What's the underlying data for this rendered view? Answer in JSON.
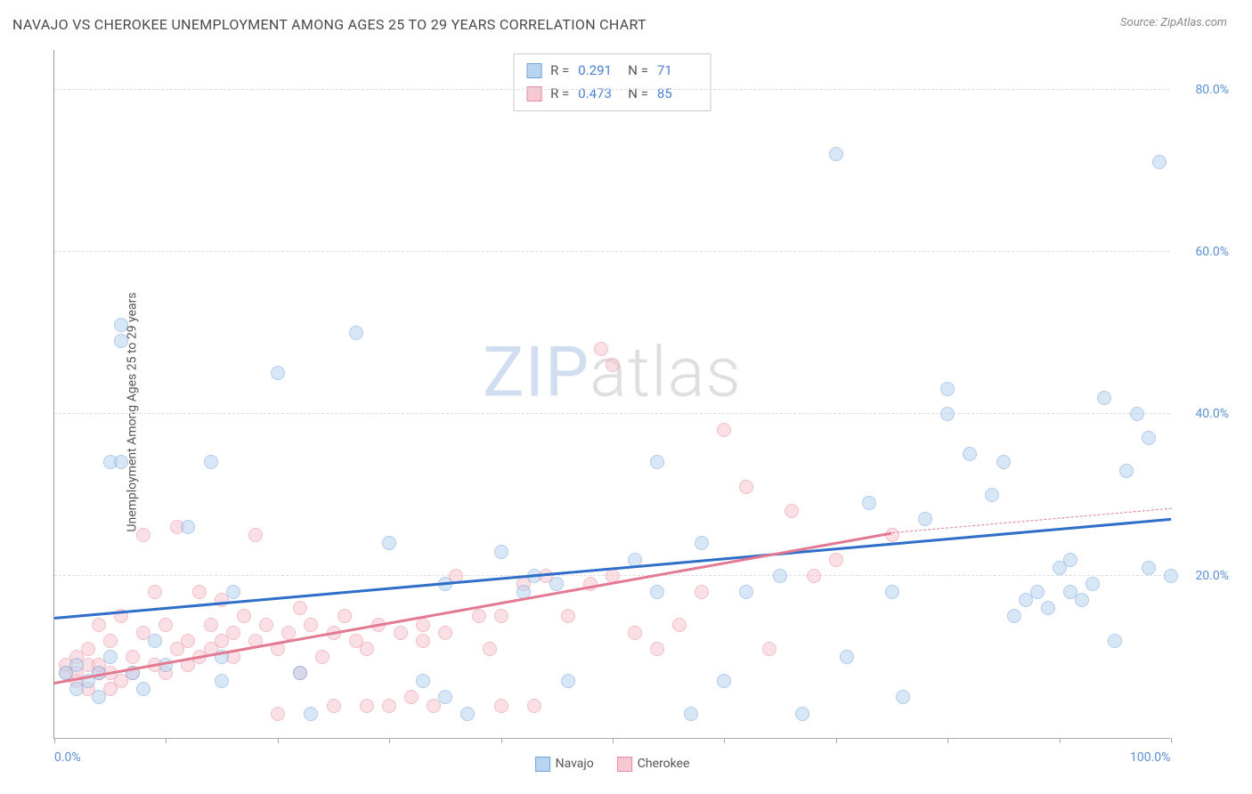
{
  "title": "NAVAJO VS CHEROKEE UNEMPLOYMENT AMONG AGES 25 TO 29 YEARS CORRELATION CHART",
  "source": "Source: ZipAtlas.com",
  "watermark": {
    "zip": "ZIP",
    "atlas": "atlas"
  },
  "chart": {
    "type": "scatter",
    "ylabel": "Unemployment Among Ages 25 to 29 years",
    "xlim": [
      0,
      100
    ],
    "ylim": [
      0,
      85
    ],
    "xticks": [
      0,
      10,
      20,
      30,
      40,
      50,
      60,
      70,
      80,
      90,
      100
    ],
    "xtick_labels": {
      "0": "0.0%",
      "100": "100.0%"
    },
    "yticks": [
      20,
      40,
      60,
      80
    ],
    "ytick_labels": [
      "20.0%",
      "40.0%",
      "60.0%",
      "80.0%"
    ],
    "grid_color": "#dddddd",
    "axis_color": "#999999",
    "tick_label_color": "#5b8fd6",
    "background": "#ffffff",
    "marker_radius": 8,
    "marker_opacity": 0.55,
    "series": [
      {
        "name": "Navajo",
        "fill": "#b9d4f0",
        "stroke": "#6fa3dd",
        "trend": {
          "color": "#2f6fc9",
          "x0": 0,
          "y0": 15.0,
          "x1": 100,
          "y1": 27.2,
          "dashed_after_x": null
        },
        "stats": {
          "R": "0.291",
          "N": "71"
        },
        "points": [
          [
            1,
            8
          ],
          [
            2,
            6
          ],
          [
            2,
            9
          ],
          [
            3,
            7
          ],
          [
            4,
            8
          ],
          [
            4,
            5
          ],
          [
            5,
            10
          ],
          [
            5,
            34
          ],
          [
            6,
            34
          ],
          [
            6,
            51
          ],
          [
            6,
            49
          ],
          [
            7,
            8
          ],
          [
            8,
            6
          ],
          [
            9,
            12
          ],
          [
            10,
            9
          ],
          [
            12,
            26
          ],
          [
            14,
            34
          ],
          [
            15,
            10
          ],
          [
            15,
            7
          ],
          [
            16,
            18
          ],
          [
            20,
            45
          ],
          [
            22,
            8
          ],
          [
            23,
            3
          ],
          [
            27,
            50
          ],
          [
            30,
            24
          ],
          [
            33,
            7
          ],
          [
            35,
            5
          ],
          [
            35,
            19
          ],
          [
            37,
            3
          ],
          [
            40,
            23
          ],
          [
            42,
            18
          ],
          [
            43,
            20
          ],
          [
            45,
            19
          ],
          [
            46,
            7
          ],
          [
            52,
            22
          ],
          [
            54,
            18
          ],
          [
            54,
            34
          ],
          [
            57,
            3
          ],
          [
            58,
            24
          ],
          [
            60,
            7
          ],
          [
            62,
            18
          ],
          [
            65,
            20
          ],
          [
            67,
            3
          ],
          [
            70,
            72
          ],
          [
            71,
            10
          ],
          [
            73,
            29
          ],
          [
            75,
            18
          ],
          [
            76,
            5
          ],
          [
            78,
            27
          ],
          [
            80,
            40
          ],
          [
            80,
            43
          ],
          [
            82,
            35
          ],
          [
            84,
            30
          ],
          [
            85,
            34
          ],
          [
            86,
            15
          ],
          [
            87,
            17
          ],
          [
            88,
            18
          ],
          [
            89,
            16
          ],
          [
            90,
            21
          ],
          [
            91,
            22
          ],
          [
            91,
            18
          ],
          [
            92,
            17
          ],
          [
            93,
            19
          ],
          [
            94,
            42
          ],
          [
            95,
            12
          ],
          [
            96,
            33
          ],
          [
            97,
            40
          ],
          [
            98,
            21
          ],
          [
            98,
            37
          ],
          [
            99,
            71
          ],
          [
            100,
            20
          ]
        ]
      },
      {
        "name": "Cherokee",
        "fill": "#f6c8d1",
        "stroke": "#e68aa0",
        "trend": {
          "color": "#e47a92",
          "x0": 0,
          "y0": 7.0,
          "x1": 75,
          "y1": 25.5,
          "dashed_after_x": 75,
          "dash_x1": 100,
          "dash_y1": 28.5
        },
        "stats": {
          "R": "0.473",
          "N": "85"
        },
        "points": [
          [
            1,
            8
          ],
          [
            1,
            9
          ],
          [
            2,
            7
          ],
          [
            2,
            8
          ],
          [
            2,
            10
          ],
          [
            3,
            6
          ],
          [
            3,
            9
          ],
          [
            3,
            11
          ],
          [
            4,
            8
          ],
          [
            4,
            9
          ],
          [
            4,
            14
          ],
          [
            5,
            6
          ],
          [
            5,
            8
          ],
          [
            5,
            12
          ],
          [
            6,
            15
          ],
          [
            6,
            7
          ],
          [
            7,
            8
          ],
          [
            7,
            10
          ],
          [
            8,
            13
          ],
          [
            8,
            25
          ],
          [
            9,
            9
          ],
          [
            9,
            18
          ],
          [
            10,
            8
          ],
          [
            10,
            14
          ],
          [
            11,
            11
          ],
          [
            11,
            26
          ],
          [
            12,
            12
          ],
          [
            12,
            9
          ],
          [
            13,
            10
          ],
          [
            13,
            18
          ],
          [
            14,
            11
          ],
          [
            14,
            14
          ],
          [
            15,
            12
          ],
          [
            15,
            17
          ],
          [
            16,
            10
          ],
          [
            16,
            13
          ],
          [
            17,
            15
          ],
          [
            18,
            12
          ],
          [
            18,
            25
          ],
          [
            19,
            14
          ],
          [
            20,
            11
          ],
          [
            20,
            3
          ],
          [
            21,
            13
          ],
          [
            22,
            16
          ],
          [
            22,
            8
          ],
          [
            23,
            14
          ],
          [
            24,
            10
          ],
          [
            25,
            13
          ],
          [
            25,
            4
          ],
          [
            26,
            15
          ],
          [
            27,
            12
          ],
          [
            28,
            11
          ],
          [
            28,
            4
          ],
          [
            29,
            14
          ],
          [
            30,
            4
          ],
          [
            31,
            13
          ],
          [
            32,
            5
          ],
          [
            33,
            12
          ],
          [
            33,
            14
          ],
          [
            34,
            4
          ],
          [
            35,
            13
          ],
          [
            36,
            20
          ],
          [
            38,
            15
          ],
          [
            39,
            11
          ],
          [
            40,
            4
          ],
          [
            40,
            15
          ],
          [
            42,
            19
          ],
          [
            43,
            4
          ],
          [
            44,
            20
          ],
          [
            46,
            15
          ],
          [
            48,
            19
          ],
          [
            49,
            48
          ],
          [
            50,
            20
          ],
          [
            50,
            46
          ],
          [
            52,
            13
          ],
          [
            54,
            11
          ],
          [
            56,
            14
          ],
          [
            58,
            18
          ],
          [
            60,
            38
          ],
          [
            62,
            31
          ],
          [
            64,
            11
          ],
          [
            66,
            28
          ],
          [
            68,
            20
          ],
          [
            70,
            22
          ],
          [
            75,
            25
          ]
        ]
      }
    ],
    "legend": [
      {
        "label": "Navajo",
        "fill": "#b9d4f0",
        "stroke": "#6fa3dd"
      },
      {
        "label": "Cherokee",
        "fill": "#f6c8d1",
        "stroke": "#e68aa0"
      }
    ]
  }
}
